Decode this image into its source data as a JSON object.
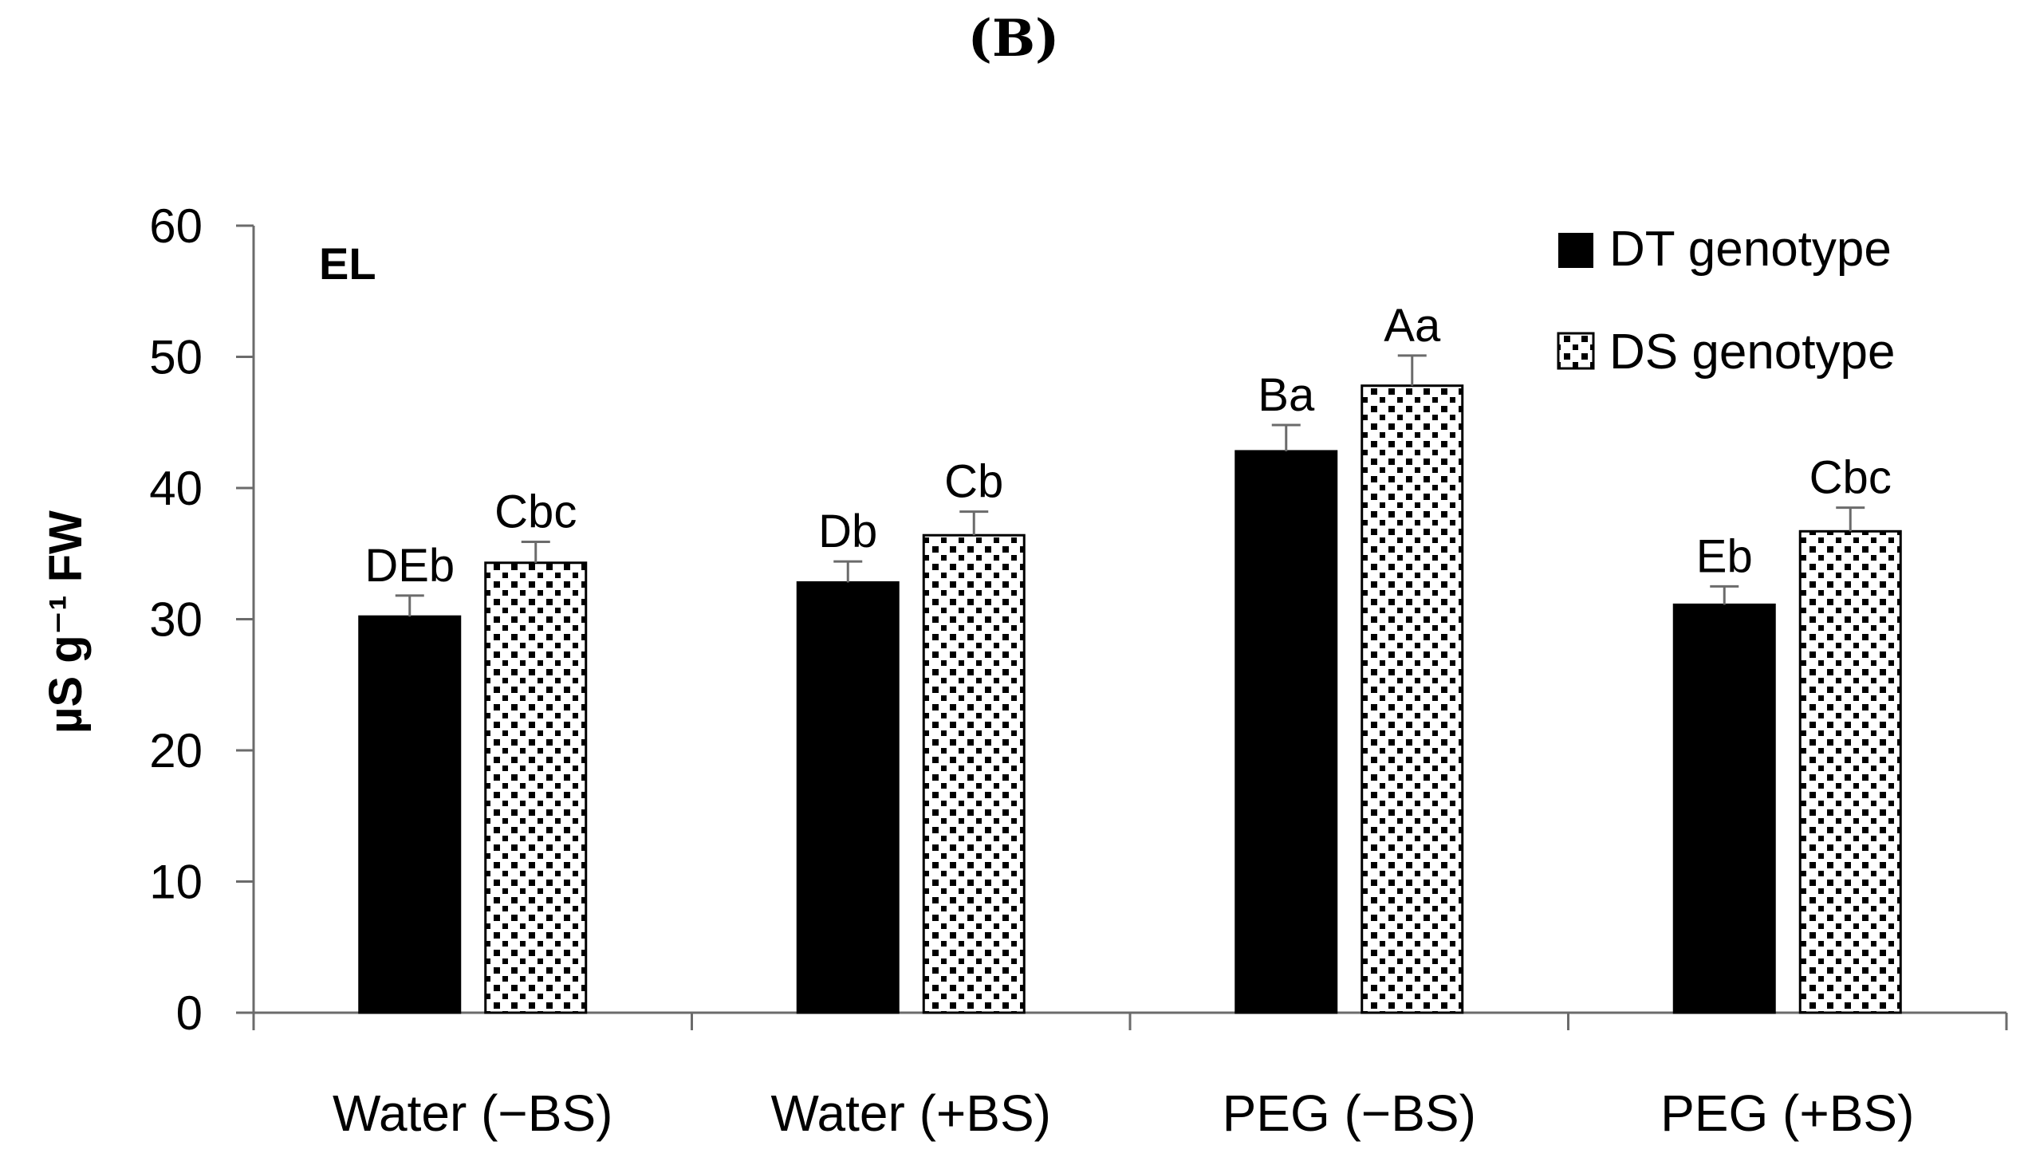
{
  "panel_label": "(B)",
  "chart_data": {
    "type": "bar",
    "inner_title": "EL",
    "ylabel": "µS g⁻¹ FW",
    "ylim": [
      0,
      60
    ],
    "yticks": [
      "0",
      "10",
      "20",
      "30",
      "40",
      "50",
      "60"
    ],
    "categories": [
      "Water (−BS)",
      "Water (+BS)",
      "PEG (−BS)",
      "PEG (+BS)"
    ],
    "legend_position": "top-right",
    "series": [
      {
        "name": "DT genotype",
        "fill": "#000000",
        "pattern": "solid",
        "values": [
          30.2,
          32.8,
          42.8,
          31.1
        ],
        "errors": [
          1.6,
          1.6,
          2.0,
          1.4
        ],
        "letters": [
          "DEb",
          "Db",
          "Ba",
          "Eb"
        ]
      },
      {
        "name": "DS genotype",
        "fill": "#ffffff",
        "pattern": "dotted",
        "values": [
          34.3,
          36.4,
          47.8,
          36.7
        ],
        "errors": [
          1.6,
          1.8,
          2.3,
          1.8
        ],
        "letters": [
          "Cbc",
          "Cb",
          "Aa",
          "Cbc"
        ]
      }
    ]
  }
}
